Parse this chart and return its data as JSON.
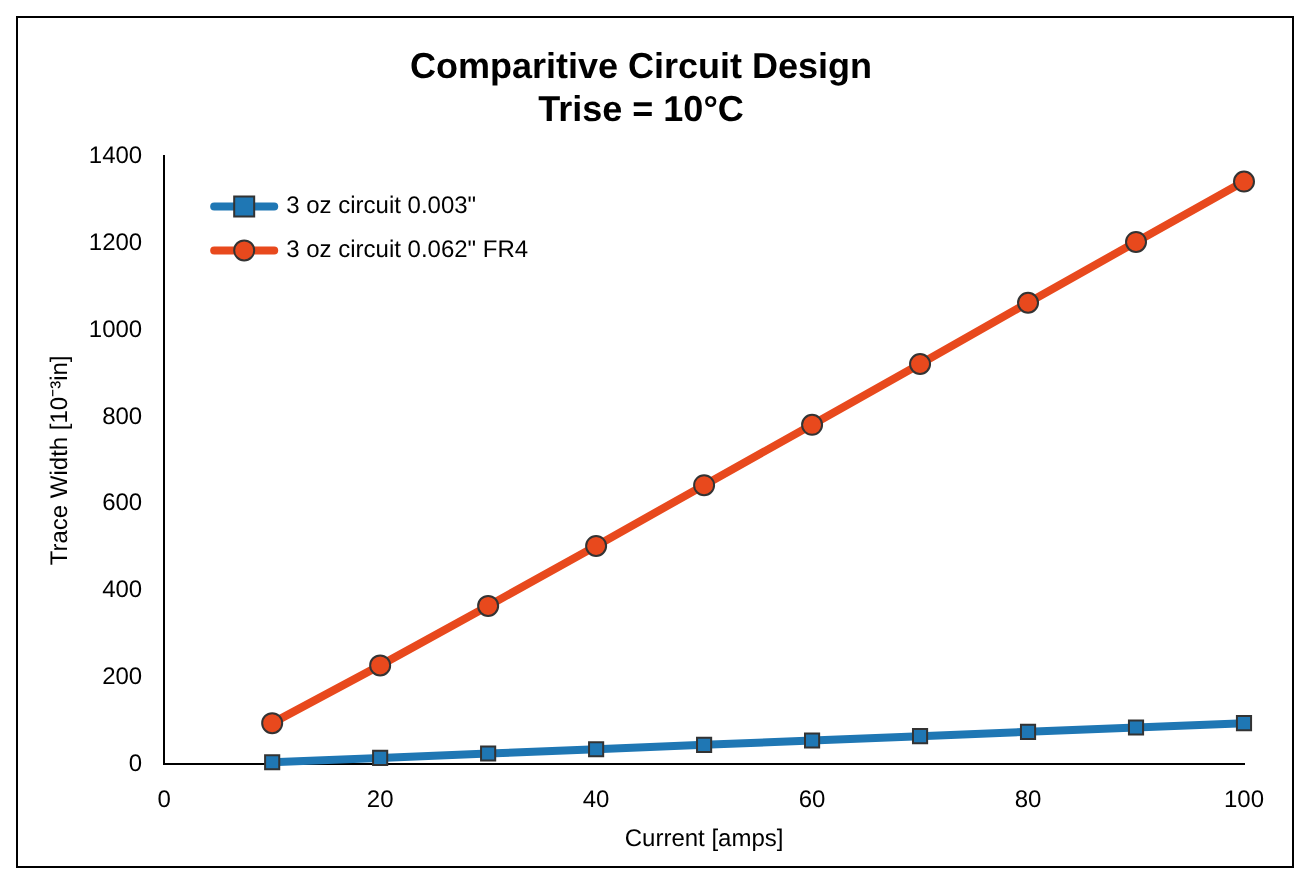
{
  "chart_data": {
    "type": "line",
    "title": "Comparitive Circuit Design",
    "subtitle": "Trise = 10°C",
    "xlabel": "Current [amps]",
    "ylabel": "Trace Width [10⁻³in]",
    "x": [
      10,
      20,
      30,
      40,
      50,
      60,
      70,
      80,
      90,
      100
    ],
    "series": [
      {
        "name": "3 oz circuit 0.003\"",
        "color": "#1f77b4",
        "marker": "square",
        "values": [
          5,
          15,
          25,
          35,
          45,
          55,
          65,
          75,
          85,
          95
        ]
      },
      {
        "name": "3 oz circuit 0.062\" FR4",
        "color": "#e8491d",
        "marker": "circle",
        "values": [
          95,
          228,
          365,
          503,
          643,
          782,
          922,
          1063,
          1203,
          1342
        ]
      }
    ],
    "xlim": [
      0,
      100
    ],
    "xticks": [
      0,
      20,
      40,
      60,
      80,
      100
    ],
    "ylim": [
      0,
      1400
    ],
    "yticks": [
      0,
      200,
      400,
      600,
      800,
      1000,
      1200,
      1400
    ],
    "grid": false,
    "legend": "top left",
    "line_style": "solid"
  }
}
